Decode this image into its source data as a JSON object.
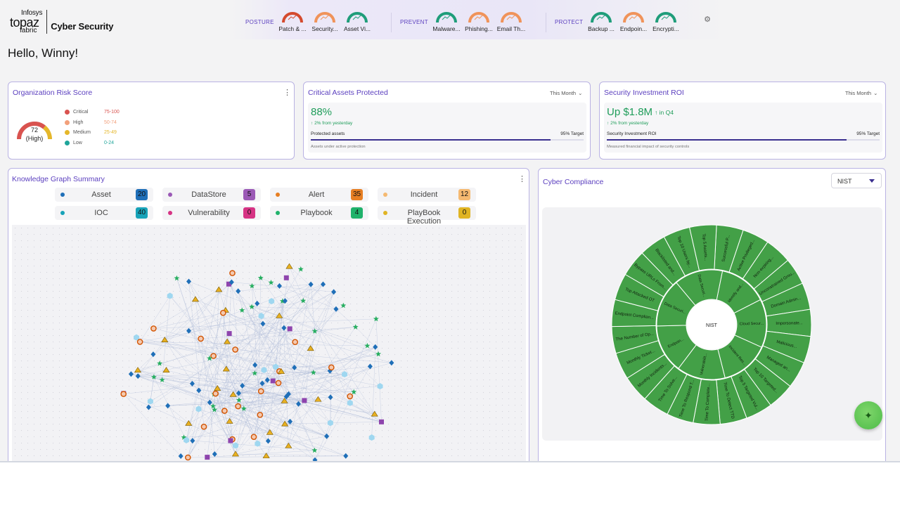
{
  "brand": {
    "company": "Infosys",
    "name": "topaz",
    "sub": "fabric",
    "product": "Cyber Security"
  },
  "topbar": {
    "groups": [
      {
        "label": "POSTURE",
        "items": [
          {
            "label": "Patch & ...",
            "color": "#d44a2e"
          },
          {
            "label": "Security...",
            "color": "#f0935a"
          },
          {
            "label": "Asset Vi...",
            "color": "#1f9d7a"
          }
        ]
      },
      {
        "label": "PREVENT",
        "items": [
          {
            "label": "Malware...",
            "color": "#1f9d7a"
          },
          {
            "label": "Phishing...",
            "color": "#f0935a"
          },
          {
            "label": "Email Th...",
            "color": "#f0935a"
          }
        ]
      },
      {
        "label": "PROTECT",
        "items": [
          {
            "label": "Backup ...",
            "color": "#1f9d7a"
          },
          {
            "label": "Endpoin...",
            "color": "#f0935a"
          },
          {
            "label": "Encrypti...",
            "color": "#1f9d7a"
          }
        ]
      }
    ],
    "settings_icon": "gear-icon"
  },
  "greeting": "Hello, Winny!",
  "risk": {
    "title": "Organization Risk Score",
    "score": "72",
    "level": "(High)",
    "score_fraction": 0.72,
    "legend": [
      {
        "name": "Critical",
        "range": "75-100",
        "color": "#d9534f"
      },
      {
        "name": "High",
        "range": "50-74",
        "color": "#f2a07b"
      },
      {
        "name": "Medium",
        "range": "25-49",
        "color": "#e5b72a"
      },
      {
        "name": "Low",
        "range": "0-24",
        "color": "#1fa59a"
      }
    ]
  },
  "assets": {
    "title": "Critical Assets Protected",
    "period": "This Month",
    "value": "88%",
    "delta": "2% from yesterday",
    "bar_label": "Protected assets",
    "target": "95% Target",
    "progress": 0.88,
    "note": "Assets under active protection"
  },
  "roi": {
    "title": "Security Investment ROI",
    "period": "This Month",
    "value": "Up $1.8M",
    "badge": "in Q4",
    "delta": "2% from yesterday",
    "bar_label": "Security Investment ROI",
    "target": "95% Target",
    "progress": 0.88,
    "note": "Measured financial impact of security controls"
  },
  "kg": {
    "title": "Knowledge Graph Summary",
    "chips": [
      {
        "name": "Asset",
        "count": "20",
        "dot": "#1f6fb8",
        "badge": "#1f6fb8"
      },
      {
        "name": "DataStore",
        "count": "5",
        "dot": "#9b59b6",
        "badge": "#9b59b6"
      },
      {
        "name": "Alert",
        "count": "35",
        "dot": "#e67e22",
        "badge": "#e67e22"
      },
      {
        "name": "Incident",
        "count": "12",
        "dot": "#f5b971",
        "badge": "#f5b971"
      },
      {
        "name": "IOC",
        "count": "40",
        "dot": "#17a2b8",
        "badge": "#17a2b8"
      },
      {
        "name": "Vulnerability",
        "count": "0",
        "dot": "#d63384",
        "badge": "#d63384"
      },
      {
        "name": "Playbook",
        "count": "4",
        "dot": "#20b26b",
        "badge": "#20b26b"
      },
      {
        "name": "PlayBook Execution",
        "count": "0",
        "dot": "#e0b423",
        "badge": "#e0b423"
      }
    ]
  },
  "compliance": {
    "title": "Cyber Compliance",
    "framework": "NIST",
    "center": "NIST",
    "inner": [
      "Identify and...",
      "Cloud Secur...",
      "Incident Res...",
      "Vulnerabilit...",
      "Endpoin...",
      "Data Securi...",
      "Data Securi..."
    ],
    "outer": [
      "Successful P...",
      "Active Privileged...",
      "Non-expiring...",
      "Unconstrained Grou...",
      "Domain Admin...",
      "Impersonate...",
      "Malicious...",
      "Managed an...",
      "Top 10 Targeted...",
      "Top 5 Targeted Vul...",
      "Time To Detect TTD",
      "Time To Complete...",
      "Time To Respond T...",
      "Time To Solve...",
      "Monthly Incidents...",
      "Monthly Ticket...",
      "The Number of Op...",
      "Endpoint Complian...",
      "Top Attacked OT",
      "Bypass URLs From...",
      "Blacklisted and...",
      "Top 10 Users by...",
      "Top 5 Assets..."
    ]
  }
}
